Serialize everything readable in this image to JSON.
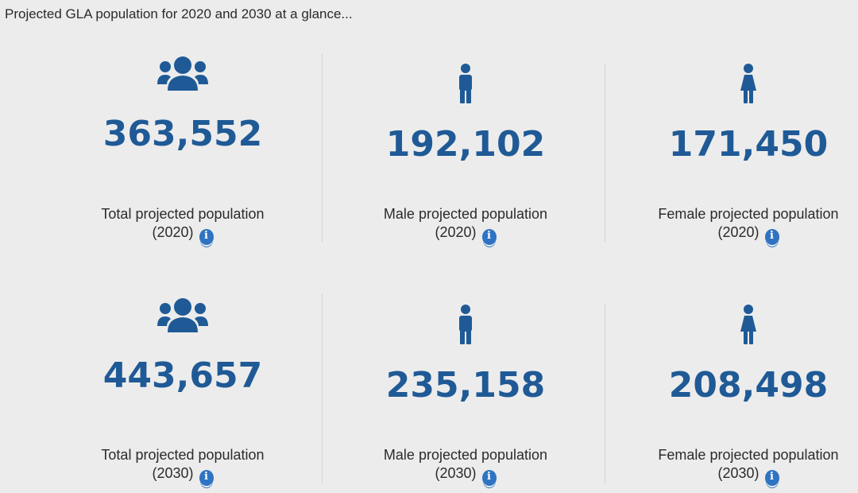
{
  "intro": "Projected GLA population for 2020 and 2030 at a glance...",
  "accent_color": "#1f5a96",
  "rows": [
    {
      "cells": [
        {
          "icon": "group-icon",
          "value": "363,552",
          "label_line1": "Total projected population",
          "label_line2": "(2020)"
        },
        {
          "icon": "male-icon",
          "value": "192,102",
          "label_line1": "Male projected population",
          "label_line2": "(2020)"
        },
        {
          "icon": "female-icon",
          "value": "171,450",
          "label_line1": "Female projected population",
          "label_line2": "(2020)"
        }
      ]
    },
    {
      "cells": [
        {
          "icon": "group-icon",
          "value": "443,657",
          "label_line1": "Total projected population",
          "label_line2": "(2030)"
        },
        {
          "icon": "male-icon",
          "value": "235,158",
          "label_line1": "Male projected population",
          "label_line2": "(2030)"
        },
        {
          "icon": "female-icon",
          "value": "208,498",
          "label_line1": "Female projected population",
          "label_line2": "(2030)"
        }
      ]
    }
  ],
  "info_glyph": "i"
}
